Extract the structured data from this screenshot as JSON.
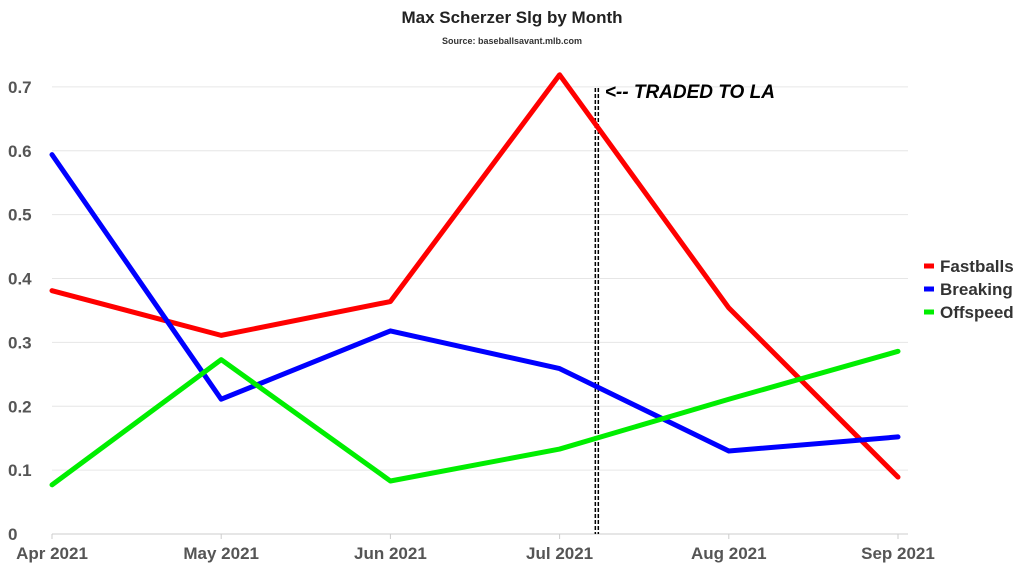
{
  "chart_data": {
    "type": "line",
    "title": "Max Scherzer Slg by Month",
    "subtitle": "Source: baseballsavant.mlb.com",
    "categories": [
      "Apr 2021",
      "May 2021",
      "Jun 2021",
      "Jul 2021",
      "Aug 2021",
      "Sep 2021"
    ],
    "y_ticks": [
      "0",
      "0.1",
      "0.2",
      "0.3",
      "0.4",
      "0.5",
      "0.6",
      "0.7"
    ],
    "ylim": [
      0,
      0.75
    ],
    "grid": true,
    "legend_position": "right",
    "series": [
      {
        "name": "Fastballs",
        "color": "#ff0000",
        "values": [
          0.381,
          0.311,
          0.364,
          0.719,
          0.354,
          0.089
        ]
      },
      {
        "name": "Breaking",
        "color": "#0000ff",
        "values": [
          0.594,
          0.211,
          0.318,
          0.259,
          0.13,
          0.152
        ]
      },
      {
        "name": "Offspeed",
        "color": "#00ee00",
        "values": [
          0.077,
          0.273,
          0.083,
          0.133,
          0.211,
          0.286
        ]
      }
    ],
    "annotation": {
      "text": "<-- TRADED TO LA",
      "x_category_position": 3.22
    }
  }
}
